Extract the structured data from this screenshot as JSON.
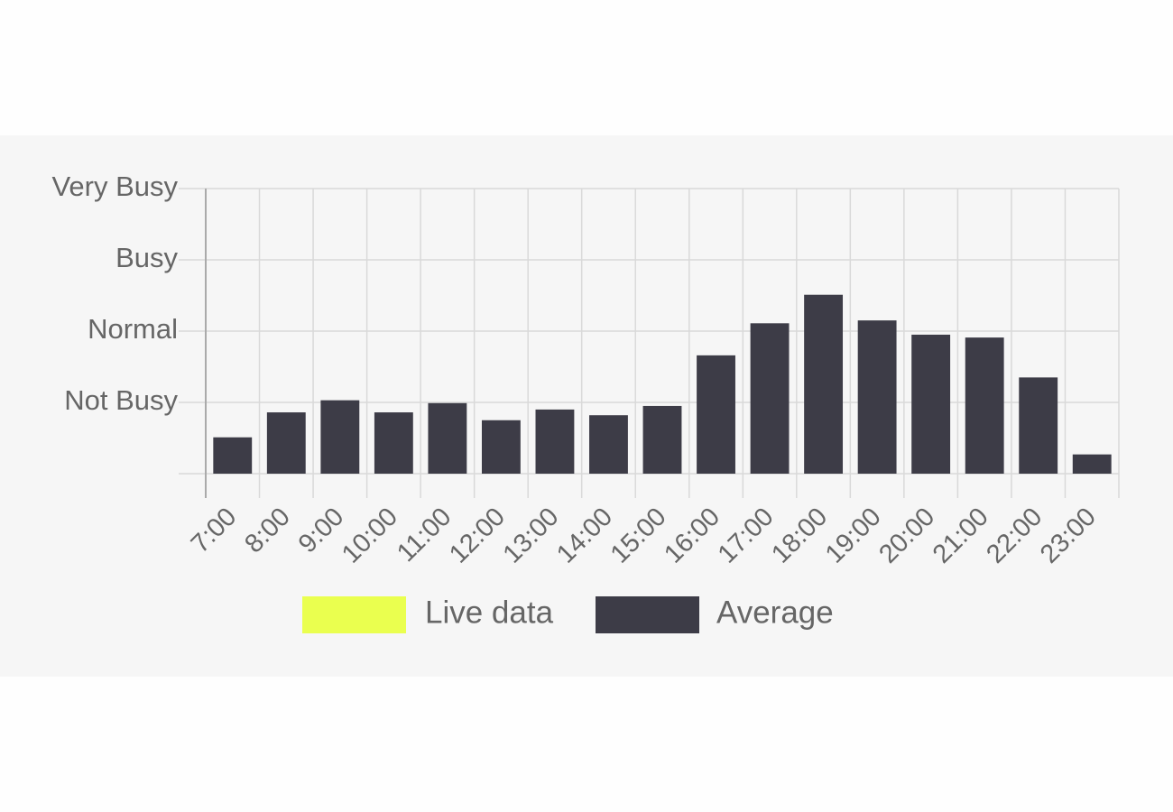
{
  "chart_data": {
    "type": "bar",
    "categories": [
      "7:00",
      "8:00",
      "9:00",
      "10:00",
      "11:00",
      "12:00",
      "13:00",
      "14:00",
      "15:00",
      "16:00",
      "17:00",
      "18:00",
      "19:00",
      "20:00",
      "21:00",
      "22:00",
      "23:00"
    ],
    "series": [
      {
        "name": "Live data",
        "color": "#eaff4f",
        "values": [
          null,
          null,
          null,
          null,
          null,
          null,
          null,
          null,
          null,
          null,
          null,
          null,
          null,
          null,
          null,
          null,
          null
        ]
      },
      {
        "name": "Average",
        "color": "#3d3c47",
        "values": [
          0.51,
          0.86,
          1.03,
          0.86,
          0.99,
          0.75,
          0.9,
          0.82,
          0.95,
          1.66,
          2.11,
          2.51,
          2.15,
          1.95,
          1.91,
          1.35,
          0.27
        ]
      }
    ],
    "ylim": [
      0,
      4
    ],
    "yticks": [
      {
        "value": 1,
        "label": "Not Busy"
      },
      {
        "value": 2,
        "label": "Normal"
      },
      {
        "value": 3,
        "label": "Busy"
      },
      {
        "value": 4,
        "label": "Very Busy"
      }
    ],
    "grid": true,
    "legend": "bottom"
  }
}
